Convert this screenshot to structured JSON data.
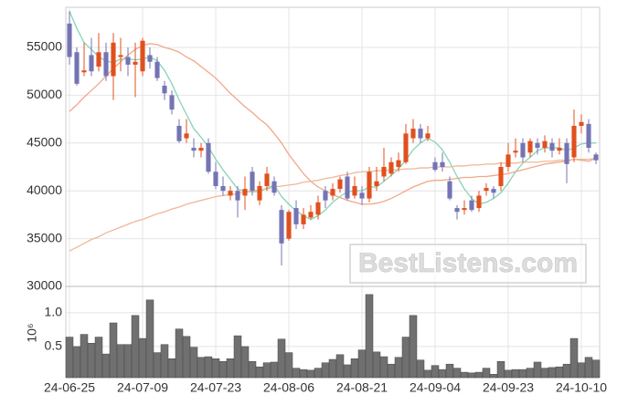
{
  "chart_data": [
    {
      "type": "candlestick",
      "annotations": [
        "BestListens.com"
      ],
      "up_color": "#e0501e",
      "down_color": "#7474b4",
      "open": [
        57500,
        54500,
        52400,
        54200,
        53000,
        54500,
        52000,
        54000,
        54000,
        53200,
        52500,
        54200,
        53500,
        51000,
        50000,
        46800,
        45500,
        44500,
        44200,
        45000,
        42000,
        40500,
        39500,
        40000,
        39500,
        42000,
        39000,
        40500,
        41000,
        38000,
        35000,
        38200,
        36500,
        37200,
        37500,
        40000,
        39500,
        40200,
        41500,
        39500,
        39800,
        39200,
        40500,
        41500,
        41800,
        42500,
        43000,
        45500,
        46500,
        45500,
        43000,
        43000,
        41000,
        38200,
        38000,
        39000,
        38200,
        40000,
        40200,
        40500,
        42500,
        44000,
        45000,
        44000,
        45000,
        44500,
        45000,
        44200,
        45000,
        43500,
        46800,
        47000,
        43800
      ],
      "high": [
        58800,
        55000,
        55500,
        56000,
        56500,
        55500,
        56500,
        56000,
        55000,
        55500,
        56000,
        55000,
        54000,
        51500,
        50500,
        47500,
        47500,
        45500,
        45000,
        45500,
        43000,
        41500,
        40500,
        40500,
        41500,
        42500,
        41000,
        42500,
        41500,
        38500,
        38000,
        39000,
        38200,
        38500,
        39500,
        40500,
        40800,
        41500,
        42000,
        41500,
        40500,
        42500,
        42500,
        44500,
        43500,
        44000,
        47000,
        47500,
        47000,
        46800,
        43500,
        44000,
        41500,
        38500,
        39000,
        39500,
        40000,
        40800,
        40500,
        43000,
        45000,
        45500,
        45500,
        45500,
        45500,
        45800,
        45500,
        45500,
        45500,
        48500,
        48000,
        47500,
        44000
      ],
      "low": [
        53200,
        51000,
        52000,
        52000,
        52500,
        51500,
        49500,
        52500,
        52000,
        49800,
        52000,
        52800,
        51500,
        49500,
        48000,
        45000,
        45000,
        43500,
        43500,
        41800,
        40200,
        39500,
        39000,
        37200,
        38000,
        39500,
        38500,
        40000,
        39500,
        32200,
        34800,
        36000,
        36000,
        37000,
        37000,
        38200,
        39000,
        39800,
        39000,
        39200,
        38500,
        38800,
        40000,
        41000,
        41500,
        42000,
        42800,
        45000,
        45000,
        45200,
        42000,
        42000,
        39000,
        37000,
        37500,
        37800,
        37800,
        39500,
        39200,
        40000,
        42000,
        43500,
        43000,
        43500,
        43800,
        44000,
        43500,
        43800,
        40800,
        43000,
        46000,
        44000,
        42800
      ],
      "close": [
        54000,
        51200,
        52600,
        52500,
        54500,
        52000,
        55500,
        54200,
        53200,
        53500,
        55700,
        53500,
        51800,
        50200,
        48500,
        45200,
        46000,
        44200,
        44500,
        42000,
        40500,
        40000,
        40000,
        39000,
        40200,
        40000,
        40500,
        41800,
        39800,
        34500,
        37800,
        36500,
        37500,
        37800,
        38800,
        39000,
        40200,
        41200,
        39200,
        40500,
        39200,
        42000,
        41000,
        42500,
        43000,
        43200,
        46000,
        46500,
        45500,
        46000,
        42200,
        42500,
        39200,
        37800,
        38200,
        38000,
        39500,
        40300,
        39800,
        42500,
        43800,
        44200,
        43500,
        45200,
        44500,
        45200,
        44200,
        44500,
        42800,
        46800,
        47200,
        44500,
        43200
      ],
      "series": [
        {
          "color": "#86d4b8",
          "values": [
            58800,
            57000,
            55500,
            54800,
            54000,
            53600,
            53400,
            53800,
            53800,
            53700,
            53800,
            54000,
            53600,
            52600,
            51200,
            49500,
            48000,
            46500,
            45600,
            44600,
            43300,
            42200,
            41200,
            40200,
            39900,
            39900,
            39900,
            40300,
            40600,
            39400,
            38600,
            37900,
            37400,
            37000,
            37400,
            38000,
            38800,
            39400,
            39900,
            40000,
            40000,
            40400,
            40400,
            41000,
            41600,
            42300,
            43200,
            44300,
            45000,
            45500,
            45100,
            44300,
            43000,
            41500,
            40200,
            39200,
            38600,
            38800,
            39200,
            39800,
            40800,
            42000,
            42900,
            43500,
            44200,
            44500,
            44500,
            44500,
            44200,
            44500,
            44900,
            45000,
            45000
          ]
        },
        {
          "color": "#f0a888",
          "values": [
            48300,
            49000,
            49800,
            50500,
            51200,
            52000,
            52800,
            53500,
            54200,
            54800,
            55200,
            55400,
            55300,
            55000,
            54800,
            54500,
            54000,
            53600,
            53000,
            52400,
            51800,
            51000,
            50200,
            49500,
            48800,
            48200,
            47500,
            46900,
            46000,
            45000,
            43800,
            42800,
            41800,
            41000,
            40400,
            40000,
            39600,
            39300,
            39000,
            38800,
            38600,
            38600,
            38700,
            38900,
            39200,
            39600,
            40000,
            40400,
            40700,
            41000,
            41100,
            41100,
            41200,
            41300,
            41400,
            41400,
            41500,
            41500,
            41600,
            41700,
            41800,
            42000,
            42200,
            42400,
            42600,
            42800,
            42900,
            43000,
            43100,
            43300,
            43200,
            43100,
            43400
          ]
        },
        {
          "color": "#f0b898",
          "values": [
            33700,
            34100,
            34500,
            34900,
            35200,
            35600,
            35900,
            36200,
            36500,
            36800,
            37000,
            37300,
            37600,
            37800,
            38100,
            38300,
            38600,
            38800,
            39000,
            39200,
            39400,
            39500,
            39600,
            39700,
            39900,
            40000,
            40100,
            40200,
            40400,
            40500,
            40600,
            40700,
            40900,
            41000,
            41100,
            41300,
            41400,
            41600,
            41700,
            41900,
            42000,
            42000,
            42100,
            42100,
            42200,
            42200,
            42300,
            42300,
            42400,
            42400,
            42500,
            42500,
            42500,
            42600,
            42600,
            42700,
            42700,
            42800,
            42800,
            42900,
            42900,
            42900,
            43000,
            43000,
            43000,
            43100,
            43100,
            43200,
            43200,
            43300,
            43300,
            43300,
            43400
          ]
        }
      ],
      "ylim": [
        30000,
        59200
      ],
      "yticks": [
        30000,
        35000,
        40000,
        45000,
        50000,
        55000
      ],
      "grid": true
    },
    {
      "type": "bar",
      "ylabel": "10⁶",
      "color": "#707070",
      "categories": [
        "24-06-25",
        null,
        null,
        null,
        null,
        null,
        null,
        null,
        null,
        null,
        "24-07-09",
        null,
        null,
        null,
        null,
        null,
        null,
        null,
        null,
        null,
        "24-07-23",
        null,
        null,
        null,
        null,
        null,
        null,
        null,
        null,
        null,
        "24-08-06",
        null,
        null,
        null,
        null,
        null,
        null,
        null,
        null,
        null,
        "24-08-21",
        null,
        null,
        null,
        null,
        null,
        null,
        null,
        null,
        null,
        "24-09-04",
        null,
        null,
        null,
        null,
        null,
        null,
        null,
        null,
        null,
        "24-09-23",
        null,
        null,
        null,
        null,
        null,
        null,
        null,
        null,
        null,
        "24-10-10",
        null,
        null
      ],
      "values": [
        0.64,
        0.5,
        0.68,
        0.55,
        0.64,
        0.39,
        0.85,
        0.53,
        0.53,
        0.96,
        0.62,
        1.19,
        0.41,
        0.53,
        0.32,
        0.76,
        0.65,
        0.49,
        0.34,
        0.35,
        0.32,
        0.28,
        0.32,
        0.66,
        0.5,
        0.28,
        0.2,
        0.26,
        0.27,
        0.61,
        0.41,
        0.18,
        0.16,
        0.15,
        0.18,
        0.26,
        0.31,
        0.38,
        0.23,
        0.32,
        0.45,
        1.27,
        0.42,
        0.35,
        0.24,
        0.34,
        0.64,
        0.96,
        0.3,
        0.15,
        0.22,
        0.16,
        0.24,
        0.18,
        0.12,
        0.11,
        0.12,
        0.18,
        0.09,
        0.28,
        0.15,
        0.16,
        0.16,
        0.18,
        0.27,
        0.18,
        0.19,
        0.2,
        0.24,
        0.62,
        0.26,
        0.34,
        0.3
      ],
      "ylim": [
        0.04,
        1.39
      ],
      "yticks": [
        0.5,
        {
          "value": 1,
          "label": "1.0"
        }
      ],
      "grid": true
    }
  ]
}
